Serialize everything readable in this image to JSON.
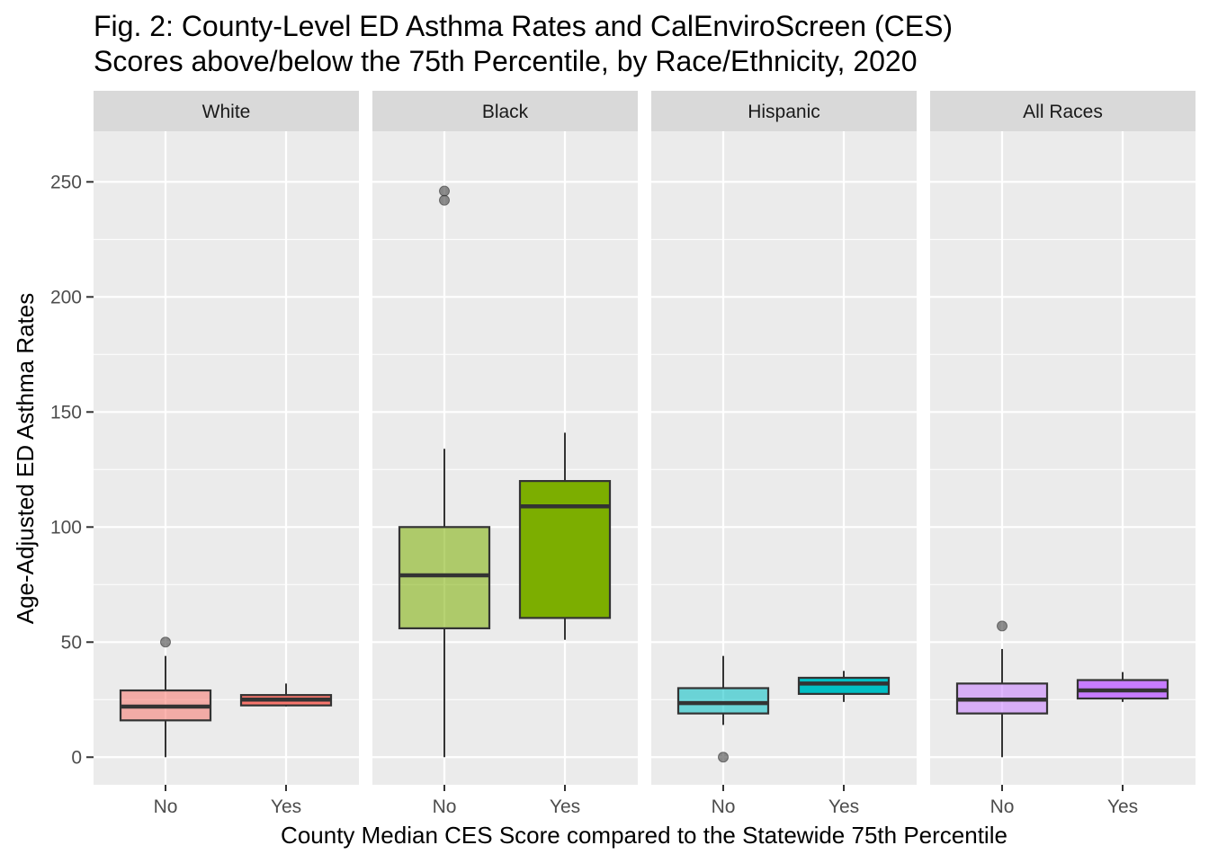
{
  "chart_data": {
    "type": "boxplot",
    "title_lines": [
      "Fig. 2: County-Level ED Asthma Rates and CalEnviroScreen (CES)",
      "Scores above/below the 75th Percentile, by Race/Ethnicity, 2020"
    ],
    "xlabel": "County Median CES Score compared to the Statewide 75th Percentile",
    "ylabel": "Age-Adjusted ED Asthma Rates",
    "ylim": [
      -12,
      272
    ],
    "yticks": [
      0,
      50,
      100,
      150,
      200,
      250
    ],
    "categories": [
      "No",
      "Yes"
    ],
    "facets": [
      {
        "name": "White",
        "boxes": [
          {
            "category": "No",
            "color": "#F8766D",
            "alpha": 0.55,
            "whisker_low": 0,
            "q1": 16,
            "median": 22,
            "q3": 29,
            "whisker_high": 44,
            "outliers": [
              50
            ]
          },
          {
            "category": "Yes",
            "color": "#F8766D",
            "alpha": 1.0,
            "whisker_low": 22,
            "q1": 22.5,
            "median": 25,
            "q3": 27,
            "whisker_high": 32,
            "outliers": []
          }
        ]
      },
      {
        "name": "Black",
        "boxes": [
          {
            "category": "No",
            "color": "#7CAE00",
            "alpha": 0.55,
            "whisker_low": 0,
            "q1": 56,
            "median": 79,
            "q3": 100,
            "whisker_high": 134,
            "outliers": [
              242,
              246
            ]
          },
          {
            "category": "Yes",
            "color": "#7CAE00",
            "alpha": 1.0,
            "whisker_low": 51,
            "q1": 60.5,
            "median": 109,
            "q3": 120,
            "whisker_high": 141,
            "outliers": []
          }
        ]
      },
      {
        "name": "Hispanic",
        "boxes": [
          {
            "category": "No",
            "color": "#00BFC4",
            "alpha": 0.55,
            "whisker_low": 14,
            "q1": 19,
            "median": 23.5,
            "q3": 30,
            "whisker_high": 44,
            "outliers": [
              0
            ]
          },
          {
            "category": "Yes",
            "color": "#00BFC4",
            "alpha": 1.0,
            "whisker_low": 24,
            "q1": 27.5,
            "median": 32,
            "q3": 34.5,
            "whisker_high": 37.5,
            "outliers": []
          }
        ]
      },
      {
        "name": "All Races",
        "boxes": [
          {
            "category": "No",
            "color": "#C77CFF",
            "alpha": 0.55,
            "whisker_low": 0,
            "q1": 19,
            "median": 25,
            "q3": 32,
            "whisker_high": 47,
            "outliers": [
              57
            ]
          },
          {
            "category": "Yes",
            "color": "#C77CFF",
            "alpha": 1.0,
            "whisker_low": 24,
            "q1": 25.5,
            "median": 29,
            "q3": 33.5,
            "whisker_high": 37,
            "outliers": []
          }
        ]
      }
    ],
    "grid": true,
    "legend": "none"
  }
}
